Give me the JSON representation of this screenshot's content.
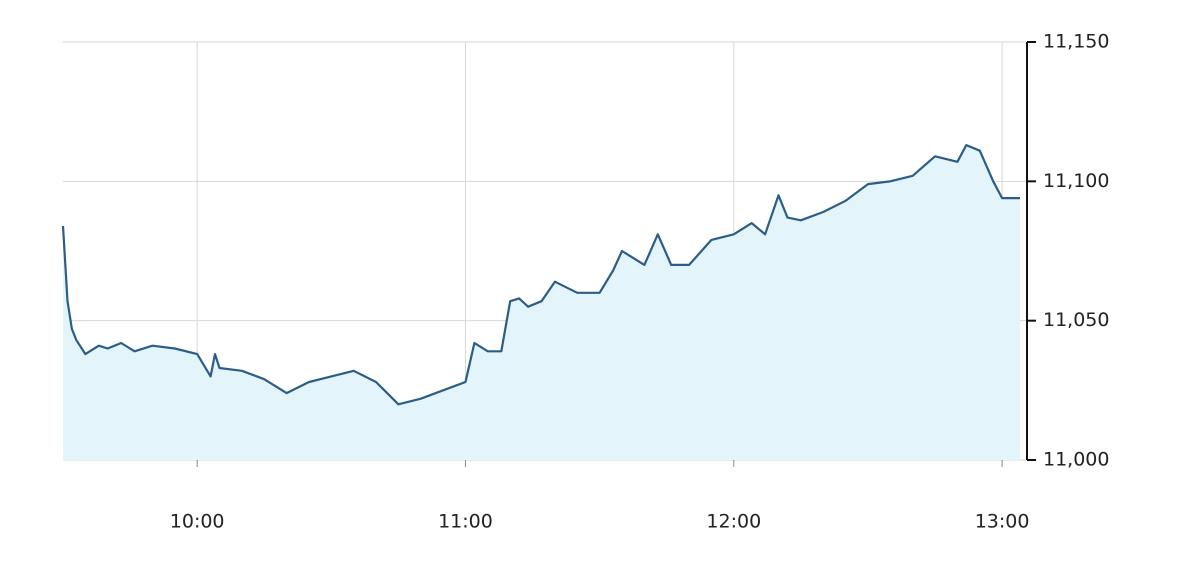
{
  "chart_data": {
    "type": "area",
    "x": [
      "9:30",
      "9:31",
      "9:32",
      "9:33",
      "9:35",
      "9:38",
      "9:40",
      "9:43",
      "9:46",
      "9:50",
      "9:55",
      "10:00",
      "10:03",
      "10:04",
      "10:05",
      "10:10",
      "10:15",
      "10:20",
      "10:25",
      "10:30",
      "10:35",
      "10:40",
      "10:45",
      "10:50",
      "10:55",
      "11:00",
      "11:02",
      "11:05",
      "11:08",
      "11:10",
      "11:12",
      "11:14",
      "11:17",
      "11:20",
      "11:25",
      "11:30",
      "11:33",
      "11:35",
      "11:40",
      "11:43",
      "11:46",
      "11:50",
      "11:55",
      "12:00",
      "12:04",
      "12:07",
      "12:10",
      "12:12",
      "12:15",
      "12:20",
      "12:25",
      "12:30",
      "12:35",
      "12:40",
      "12:45",
      "12:50",
      "12:52",
      "12:55",
      "12:58",
      "13:00",
      "13:04"
    ],
    "values": [
      11084,
      11057,
      11047,
      11043,
      11038,
      11041,
      11040,
      11042,
      11039,
      11041,
      11040,
      11038,
      11030,
      11038,
      11033,
      11032,
      11029,
      11024,
      11028,
      11030,
      11032,
      11028,
      11020,
      11022,
      11025,
      11028,
      11042,
      11039,
      11039,
      11057,
      11058,
      11055,
      11057,
      11064,
      11060,
      11060,
      11068,
      11075,
      11070,
      11081,
      11070,
      11070,
      11079,
      11081,
      11085,
      11081,
      11095,
      11087,
      11086,
      11089,
      11093,
      11099,
      11100,
      11102,
      11109,
      11107,
      11113,
      11111,
      11100,
      11094,
      11094
    ],
    "color": "#2b5d86",
    "fill": "#e3f5fb",
    "xlim": [
      "9:30",
      "13:04"
    ],
    "xticks": [
      "10:00",
      "11:00",
      "12:00",
      "13:00"
    ],
    "ylim": [
      11000,
      11150
    ],
    "yticks": [
      {
        "value": 11000,
        "label": "11,000"
      },
      {
        "value": 11050,
        "label": "11,050"
      },
      {
        "value": 11100,
        "label": "11,100"
      },
      {
        "value": 11150,
        "label": "11,150"
      }
    ],
    "grid": true
  }
}
